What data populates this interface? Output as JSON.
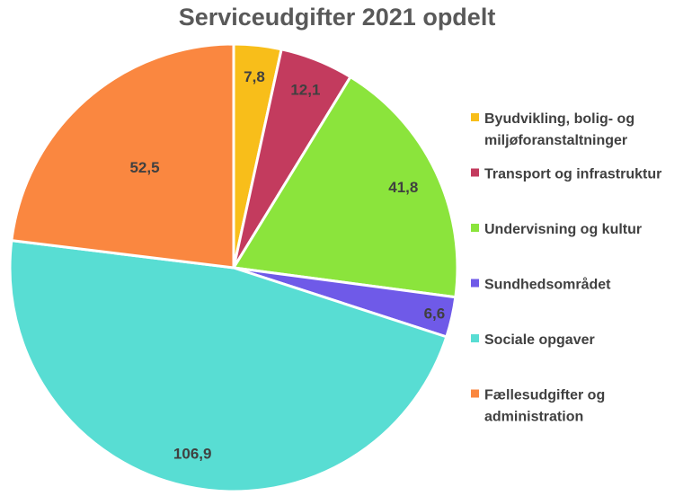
{
  "chart_data": {
    "type": "pie",
    "title": "Serviceudgifter 2021 opdelt",
    "legend_position": "right",
    "categories": [
      "Byudvikling, bolig- og miljøforanstaltninger",
      "Transport og infrastruktur",
      "Undervisning og kultur",
      "Sundhedsområdet",
      "Sociale opgaver",
      "Fællesudgifter og administration"
    ],
    "legend_lines": [
      [
        "Byudvikling, bolig- og",
        "miljøforanstaltninger"
      ],
      [
        "Transport og infrastruktur"
      ],
      [
        "Undervisning og kultur"
      ],
      [
        "Sundhedsområdet"
      ],
      [
        "Sociale opgaver"
      ],
      [
        "Fællesudgifter og",
        "administration"
      ]
    ],
    "values": [
      7.8,
      12.1,
      41.8,
      6.6,
      106.9,
      52.5
    ],
    "data_labels": [
      "7,8",
      "12,1",
      "41,8",
      "6,6",
      "106,9",
      "52,5"
    ],
    "colors": [
      "#F8BE1A",
      "#C33B5E",
      "#8BE43C",
      "#6F5AE8",
      "#58DDD3",
      "#FA8740"
    ],
    "slice_border_color": "#FFFFFF"
  }
}
